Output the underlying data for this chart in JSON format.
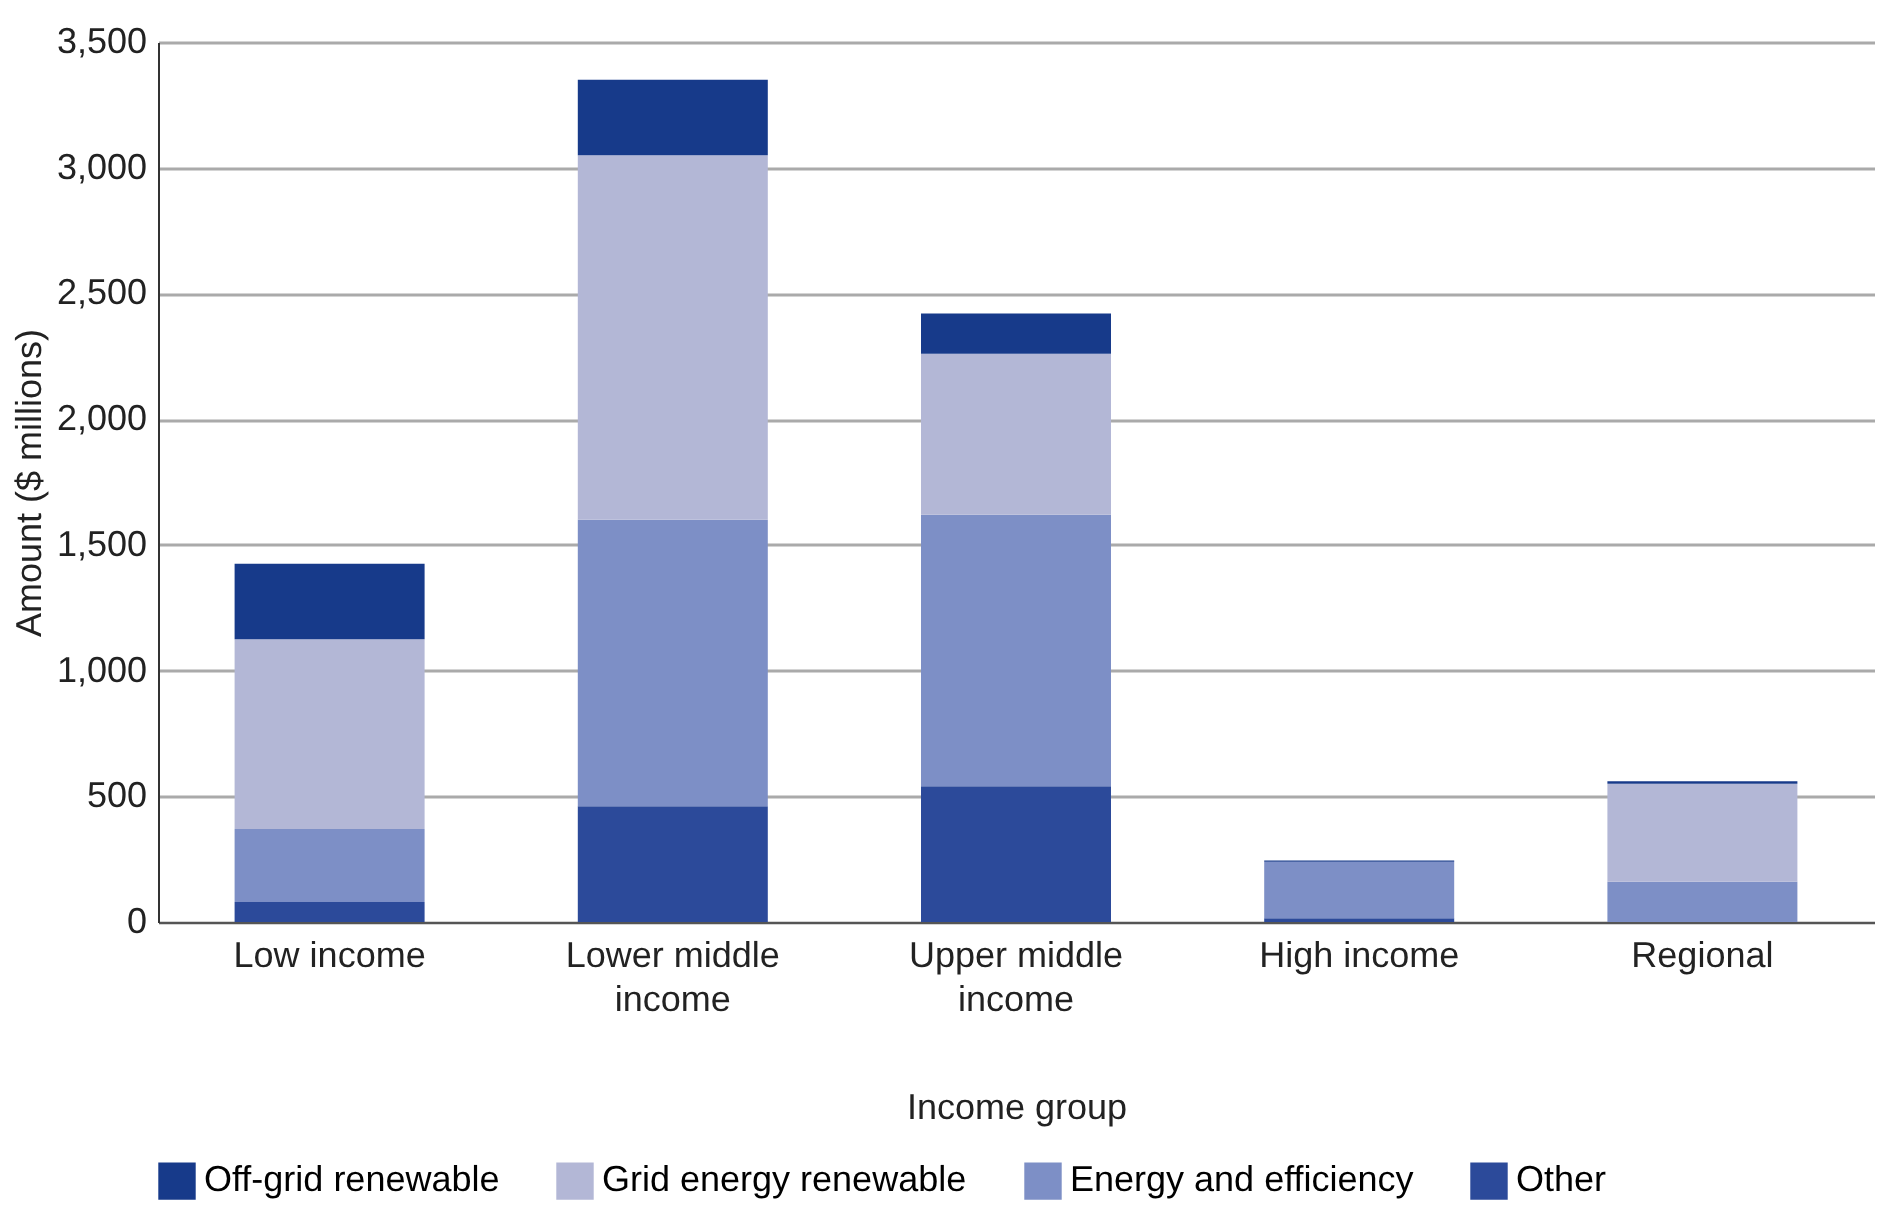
{
  "chart_data": {
    "type": "bar",
    "stacked": true,
    "xlabel": "Income group",
    "ylabel": "Amount ($ millions)",
    "categories": [
      "Low income",
      "Lower middle income",
      "Upper middle income",
      "High income",
      "Regional"
    ],
    "series": [
      {
        "name": "Other",
        "color": "#2c4a9a",
        "values": [
          80,
          460,
          540,
          15,
          0
        ]
      },
      {
        "name": "Energy and efficiency",
        "color": "#7d8fc6",
        "values": [
          290,
          1140,
          1080,
          225,
          160
        ]
      },
      {
        "name": "Grid energy renewable",
        "color": "#b3b7d6",
        "values": [
          755,
          1450,
          640,
          0,
          390
        ]
      },
      {
        "name": "Off-grid renewable",
        "color": "#173a8a",
        "values": [
          300,
          300,
          160,
          5,
          10
        ]
      }
    ],
    "ylim": [
      0,
      3500
    ],
    "yticks": [
      0,
      500,
      {
        "value": 1000,
        "label": "1,000"
      },
      {
        "value": 1500,
        "label": "1,500"
      },
      {
        "value": 2000,
        "label": "2,000"
      },
      {
        "value": 2500,
        "label": "2,500"
      },
      {
        "value": 3000,
        "label": "3,000"
      },
      {
        "value": 3500,
        "label": "3,500"
      }
    ],
    "grid": "y",
    "legend": "bottom"
  }
}
